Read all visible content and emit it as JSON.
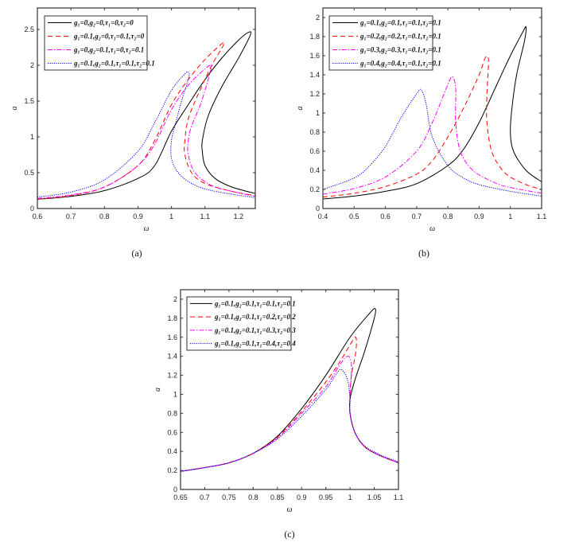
{
  "chart_data": [
    {
      "type": "line",
      "caption": "(a)",
      "xlabel": "ω",
      "ylabel": "a",
      "xlim": [
        0.6,
        1.25
      ],
      "ylim": [
        0,
        2.8
      ],
      "xticks": [
        0.6,
        0.7,
        0.8,
        0.9,
        1,
        1.1,
        1.2
      ],
      "yticks": [
        0,
        0.5,
        1,
        1.5,
        2,
        2.5
      ],
      "legend_position": "top-left",
      "series": [
        {
          "name": "g₁=0,g₂=0,τ₁=0,τ₂=0",
          "color": "#000000",
          "style": "solid",
          "points": [
            [
              0.6,
              0.13
            ],
            [
              0.7,
              0.17
            ],
            [
              0.8,
              0.25
            ],
            [
              0.9,
              0.42
            ],
            [
              0.95,
              0.6
            ],
            [
              1.0,
              1.08
            ],
            [
              1.05,
              1.45
            ],
            [
              1.1,
              1.8
            ],
            [
              1.15,
              2.1
            ],
            [
              1.2,
              2.35
            ],
            [
              1.23,
              2.46
            ],
            [
              1.235,
              2.42
            ],
            [
              1.2,
              2.1
            ],
            [
              1.15,
              1.7
            ],
            [
              1.11,
              1.3
            ],
            [
              1.092,
              0.95
            ],
            [
              1.092,
              0.8
            ],
            [
              1.1,
              0.6
            ],
            [
              1.13,
              0.42
            ],
            [
              1.18,
              0.3
            ],
            [
              1.25,
              0.21
            ]
          ]
        },
        {
          "name": "g₁=0.1,g₂=0,τ₁=0.1,τ₂=0",
          "color": "#ff0000",
          "style": "dashed",
          "points": [
            [
              0.6,
              0.13
            ],
            [
              0.7,
              0.18
            ],
            [
              0.8,
              0.3
            ],
            [
              0.9,
              0.6
            ],
            [
              0.95,
              0.95
            ],
            [
              1.0,
              1.45
            ],
            [
              1.05,
              1.8
            ],
            [
              1.1,
              2.08
            ],
            [
              1.15,
              2.3
            ],
            [
              1.155,
              2.28
            ],
            [
              1.12,
              2.0
            ],
            [
              1.08,
              1.6
            ],
            [
              1.05,
              1.25
            ],
            [
              1.04,
              0.95
            ],
            [
              1.04,
              0.75
            ],
            [
              1.06,
              0.5
            ],
            [
              1.1,
              0.35
            ],
            [
              1.18,
              0.24
            ],
            [
              1.25,
              0.18
            ]
          ]
        },
        {
          "name": "g₁=0,g₂=0.1,τ₁=0,τ₂=0.1",
          "color": "#ff00ff",
          "style": "dashdot",
          "points": [
            [
              0.6,
              0.14
            ],
            [
              0.7,
              0.19
            ],
            [
              0.8,
              0.3
            ],
            [
              0.9,
              0.6
            ],
            [
              0.95,
              0.9
            ],
            [
              1.0,
              1.38
            ],
            [
              1.05,
              1.72
            ],
            [
              1.1,
              1.95
            ],
            [
              1.12,
              2.0
            ],
            [
              1.115,
              1.9
            ],
            [
              1.09,
              1.5
            ],
            [
              1.06,
              1.15
            ],
            [
              1.05,
              0.95
            ],
            [
              1.05,
              0.75
            ],
            [
              1.07,
              0.5
            ],
            [
              1.12,
              0.32
            ],
            [
              1.18,
              0.24
            ],
            [
              1.25,
              0.17
            ]
          ]
        },
        {
          "name": "g₁=0.1,g₂=0.1,τ₁=0.1,τ₂=0.1",
          "color": "#0000ff",
          "style": "dotted",
          "points": [
            [
              0.6,
              0.16
            ],
            [
              0.7,
              0.23
            ],
            [
              0.8,
              0.4
            ],
            [
              0.9,
              0.8
            ],
            [
              0.95,
              1.2
            ],
            [
              1.0,
              1.65
            ],
            [
              1.04,
              1.88
            ],
            [
              1.052,
              1.9
            ],
            [
              1.05,
              1.8
            ],
            [
              1.03,
              1.5
            ],
            [
              1.01,
              1.15
            ],
            [
              1.0,
              0.95
            ],
            [
              1.0,
              0.7
            ],
            [
              1.02,
              0.5
            ],
            [
              1.06,
              0.35
            ],
            [
              1.12,
              0.25
            ],
            [
              1.25,
              0.15
            ]
          ]
        }
      ]
    },
    {
      "type": "line",
      "caption": "(b)",
      "xlabel": "ω",
      "ylabel": "a",
      "xlim": [
        0.4,
        1.1
      ],
      "ylim": [
        0,
        2.1
      ],
      "xticks": [
        0.4,
        0.5,
        0.6,
        0.7,
        0.8,
        0.9,
        1,
        1.1
      ],
      "yticks": [
        0,
        0.2,
        0.4,
        0.6,
        0.8,
        1,
        1.2,
        1.4,
        1.6,
        1.8,
        2
      ],
      "legend_position": "top-left",
      "series": [
        {
          "name": "g₁=0.1,g₂=0.1,τ₁=0.1,τ₂=0.1",
          "color": "#000000",
          "style": "solid",
          "points": [
            [
              0.4,
              0.1
            ],
            [
              0.5,
              0.13
            ],
            [
              0.6,
              0.18
            ],
            [
              0.7,
              0.26
            ],
            [
              0.8,
              0.45
            ],
            [
              0.85,
              0.62
            ],
            [
              0.9,
              0.9
            ],
            [
              0.95,
              1.25
            ],
            [
              1.0,
              1.6
            ],
            [
              1.04,
              1.85
            ],
            [
              1.05,
              1.9
            ],
            [
              1.045,
              1.75
            ],
            [
              1.02,
              1.4
            ],
            [
              1.005,
              1.05
            ],
            [
              1.0,
              0.8
            ],
            [
              1.01,
              0.6
            ],
            [
              1.05,
              0.4
            ],
            [
              1.1,
              0.28
            ]
          ]
        },
        {
          "name": "g₁=0.2,g₂=0.2,τ₁=0.1,τ₂=0.1",
          "color": "#ff0000",
          "style": "dashed",
          "points": [
            [
              0.4,
              0.12
            ],
            [
              0.5,
              0.16
            ],
            [
              0.6,
              0.23
            ],
            [
              0.7,
              0.36
            ],
            [
              0.75,
              0.5
            ],
            [
              0.8,
              0.75
            ],
            [
              0.85,
              1.05
            ],
            [
              0.9,
              1.4
            ],
            [
              0.92,
              1.58
            ],
            [
              0.93,
              1.55
            ],
            [
              0.925,
              1.2
            ],
            [
              0.925,
              0.9
            ],
            [
              0.94,
              0.6
            ],
            [
              0.97,
              0.42
            ],
            [
              1.0,
              0.33
            ],
            [
              1.05,
              0.25
            ],
            [
              1.1,
              0.2
            ]
          ]
        },
        {
          "name": "g₁=0.3,g₂=0.3,τ₁=0.1,τ₂=0.1",
          "color": "#ff00ff",
          "style": "dashdot",
          "points": [
            [
              0.4,
              0.15
            ],
            [
              0.5,
              0.21
            ],
            [
              0.6,
              0.33
            ],
            [
              0.7,
              0.6
            ],
            [
              0.75,
              0.9
            ],
            [
              0.8,
              1.3
            ],
            [
              0.815,
              1.38
            ],
            [
              0.825,
              1.25
            ],
            [
              0.825,
              0.9
            ],
            [
              0.84,
              0.6
            ],
            [
              0.88,
              0.4
            ],
            [
              0.95,
              0.27
            ],
            [
              1.0,
              0.22
            ],
            [
              1.1,
              0.16
            ]
          ]
        },
        {
          "name": "g₁=0.4,g₂=0.4,τ₁=0.1,τ₂=0.1",
          "color": "#0000ff",
          "style": "dotted",
          "points": [
            [
              0.4,
              0.2
            ],
            [
              0.5,
              0.32
            ],
            [
              0.55,
              0.45
            ],
            [
              0.6,
              0.65
            ],
            [
              0.65,
              0.95
            ],
            [
              0.7,
              1.2
            ],
            [
              0.715,
              1.24
            ],
            [
              0.73,
              1.1
            ],
            [
              0.75,
              0.75
            ],
            [
              0.8,
              0.45
            ],
            [
              0.85,
              0.32
            ],
            [
              0.9,
              0.25
            ],
            [
              1.0,
              0.18
            ],
            [
              1.1,
              0.13
            ]
          ]
        }
      ]
    },
    {
      "type": "line",
      "caption": "(c)",
      "xlabel": "ω",
      "ylabel": "a",
      "xlim": [
        0.65,
        1.1
      ],
      "ylim": [
        0,
        2.1
      ],
      "xticks": [
        0.65,
        0.7,
        0.75,
        0.8,
        0.85,
        0.9,
        0.95,
        1,
        1.05,
        1.1
      ],
      "yticks": [
        0,
        0.2,
        0.4,
        0.6,
        0.8,
        1,
        1.2,
        1.4,
        1.6,
        1.8,
        2
      ],
      "legend_position": "top-left",
      "series": [
        {
          "name": "g₁=0.1,g₂=0.1,τ₁=0.1,τ₂=0.1",
          "color": "#000000",
          "style": "solid",
          "points": [
            [
              0.65,
              0.19
            ],
            [
              0.7,
              0.23
            ],
            [
              0.75,
              0.28
            ],
            [
              0.8,
              0.38
            ],
            [
              0.85,
              0.56
            ],
            [
              0.9,
              0.85
            ],
            [
              0.95,
              1.2
            ],
            [
              1.0,
              1.6
            ],
            [
              1.04,
              1.85
            ],
            [
              1.052,
              1.9
            ],
            [
              1.05,
              1.8
            ],
            [
              1.03,
              1.45
            ],
            [
              1.01,
              1.15
            ],
            [
              1.0,
              0.95
            ],
            [
              1.0,
              0.8
            ],
            [
              1.01,
              0.6
            ],
            [
              1.03,
              0.45
            ],
            [
              1.06,
              0.36
            ],
            [
              1.1,
              0.28
            ]
          ]
        },
        {
          "name": "g₁=0.1,g₂=0.1,τ₁=0.2,τ₂=0.2",
          "color": "#ff0000",
          "style": "dashed",
          "points": [
            [
              0.65,
              0.19
            ],
            [
              0.7,
              0.23
            ],
            [
              0.75,
              0.28
            ],
            [
              0.8,
              0.38
            ],
            [
              0.85,
              0.55
            ],
            [
              0.9,
              0.82
            ],
            [
              0.95,
              1.13
            ],
            [
              0.98,
              1.35
            ],
            [
              1.0,
              1.52
            ],
            [
              1.012,
              1.6
            ],
            [
              1.012,
              1.45
            ],
            [
              1.003,
              1.2
            ],
            [
              1.0,
              1.0
            ],
            [
              1.0,
              0.8
            ],
            [
              1.01,
              0.6
            ],
            [
              1.03,
              0.45
            ],
            [
              1.06,
              0.36
            ],
            [
              1.1,
              0.28
            ]
          ]
        },
        {
          "name": "g₁=0.1,g₂=0.1,τ₁=0.3,τ₂=0.3",
          "color": "#ff00ff",
          "style": "dashdot",
          "points": [
            [
              0.65,
              0.19
            ],
            [
              0.7,
              0.23
            ],
            [
              0.75,
              0.28
            ],
            [
              0.8,
              0.38
            ],
            [
              0.85,
              0.54
            ],
            [
              0.9,
              0.8
            ],
            [
              0.95,
              1.08
            ],
            [
              0.98,
              1.32
            ],
            [
              0.996,
              1.4
            ],
            [
              1.003,
              1.3
            ],
            [
              1.0,
              1.0
            ],
            [
              1.0,
              0.8
            ],
            [
              1.01,
              0.6
            ],
            [
              1.03,
              0.45
            ],
            [
              1.06,
              0.36
            ],
            [
              1.1,
              0.28
            ]
          ]
        },
        {
          "name": "g₁=0.1,g₂=0.1,τ₁=0.4,τ₂=0.4",
          "color": "#0000ff",
          "style": "dotted",
          "points": [
            [
              0.65,
              0.19
            ],
            [
              0.7,
              0.23
            ],
            [
              0.75,
              0.28
            ],
            [
              0.8,
              0.38
            ],
            [
              0.85,
              0.53
            ],
            [
              0.9,
              0.77
            ],
            [
              0.95,
              1.05
            ],
            [
              0.97,
              1.2
            ],
            [
              0.982,
              1.26
            ],
            [
              0.995,
              1.15
            ],
            [
              1.0,
              0.95
            ],
            [
              1.0,
              0.8
            ],
            [
              1.01,
              0.6
            ],
            [
              1.03,
              0.46
            ],
            [
              1.06,
              0.37
            ],
            [
              1.1,
              0.29
            ]
          ]
        }
      ]
    }
  ]
}
